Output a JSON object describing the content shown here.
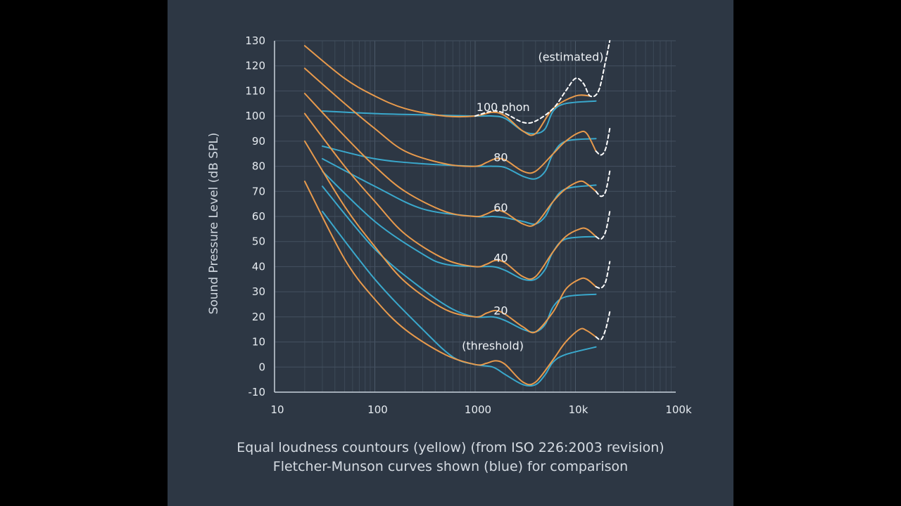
{
  "chart_data": {
    "type": "line",
    "x_scale": "log",
    "xlim": [
      10,
      100000
    ],
    "ylim": [
      -10,
      130
    ],
    "xticks": [
      10,
      100,
      1000,
      10000,
      100000
    ],
    "xtick_labels": [
      "10",
      "100",
      "1000",
      "10k",
      "100k"
    ],
    "yticks": [
      -10,
      0,
      10,
      20,
      30,
      40,
      50,
      60,
      70,
      80,
      90,
      100,
      110,
      120,
      130
    ],
    "ylabel": "Sound Pressure Level (dB SPL)",
    "xlabel": "",
    "grid": true,
    "annotations": [
      {
        "text": "100 phon",
        "x": 1900,
        "y": 102
      },
      {
        "text": "80",
        "x": 1800,
        "y": 82
      },
      {
        "text": "60",
        "x": 1800,
        "y": 62
      },
      {
        "text": "40",
        "x": 1800,
        "y": 42
      },
      {
        "text": "20",
        "x": 1800,
        "y": 21
      },
      {
        "text": "(threshold)",
        "x": 1500,
        "y": 7
      },
      {
        "text": "(estimated)",
        "x": 9000,
        "y": 122
      }
    ],
    "series": [
      {
        "group": "ISO 226:2003",
        "color": "#e89a4c",
        "level": 100,
        "points": [
          [
            20,
            128
          ],
          [
            50,
            115
          ],
          [
            100,
            108
          ],
          [
            200,
            103
          ],
          [
            500,
            100
          ],
          [
            1000,
            100
          ],
          [
            1500,
            101.5
          ],
          [
            2000,
            100
          ],
          [
            3000,
            94
          ],
          [
            4000,
            93
          ],
          [
            6000,
            103
          ],
          [
            10000,
            108
          ],
          [
            14000,
            108
          ]
        ]
      },
      {
        "group": "ISO 226:2003",
        "color": "#e89a4c",
        "level": 80,
        "points": [
          [
            20,
            119
          ],
          [
            50,
            105
          ],
          [
            100,
            95
          ],
          [
            200,
            86
          ],
          [
            500,
            81
          ],
          [
            1000,
            80
          ],
          [
            1300,
            81.5
          ],
          [
            1600,
            83
          ],
          [
            2000,
            82.5
          ],
          [
            3000,
            78
          ],
          [
            4000,
            78
          ],
          [
            6000,
            85
          ],
          [
            8000,
            90
          ],
          [
            11000,
            93.5
          ],
          [
            13000,
            93
          ],
          [
            16000,
            86
          ]
        ]
      },
      {
        "group": "ISO 226:2003",
        "color": "#e89a4c",
        "level": 60,
        "points": [
          [
            20,
            109
          ],
          [
            50,
            92
          ],
          [
            100,
            80
          ],
          [
            200,
            70
          ],
          [
            500,
            62
          ],
          [
            1000,
            60
          ],
          [
            1300,
            61
          ],
          [
            1600,
            62.5
          ],
          [
            2000,
            61.5
          ],
          [
            3000,
            57
          ],
          [
            4000,
            57
          ],
          [
            6000,
            66
          ],
          [
            8000,
            71
          ],
          [
            11000,
            74
          ],
          [
            13000,
            73
          ],
          [
            16000,
            70
          ]
        ]
      },
      {
        "group": "ISO 226:2003",
        "color": "#e89a4c",
        "level": 40,
        "points": [
          [
            20,
            101
          ],
          [
            50,
            80
          ],
          [
            100,
            66
          ],
          [
            200,
            53
          ],
          [
            500,
            43
          ],
          [
            1000,
            40
          ],
          [
            1300,
            41
          ],
          [
            1600,
            42.5
          ],
          [
            2000,
            41.5
          ],
          [
            3000,
            36
          ],
          [
            4000,
            36
          ],
          [
            6000,
            46
          ],
          [
            8000,
            52
          ],
          [
            11000,
            55
          ],
          [
            13000,
            55
          ],
          [
            16000,
            52
          ]
        ]
      },
      {
        "group": "ISO 226:2003",
        "color": "#e89a4c",
        "level": 20,
        "points": [
          [
            20,
            90
          ],
          [
            50,
            64
          ],
          [
            100,
            48
          ],
          [
            200,
            34
          ],
          [
            500,
            23
          ],
          [
            1000,
            20
          ],
          [
            1300,
            21.5
          ],
          [
            1600,
            22.5
          ],
          [
            2000,
            21
          ],
          [
            3000,
            16
          ],
          [
            4000,
            14
          ],
          [
            6000,
            22
          ],
          [
            8000,
            31
          ],
          [
            11000,
            35
          ],
          [
            13000,
            35
          ],
          [
            16000,
            32
          ]
        ]
      },
      {
        "group": "ISO 226:2003",
        "color": "#e89a4c",
        "level": 0,
        "points": [
          [
            20,
            74
          ],
          [
            50,
            43
          ],
          [
            100,
            27
          ],
          [
            200,
            15
          ],
          [
            500,
            5
          ],
          [
            1000,
            1
          ],
          [
            1300,
            1.5
          ],
          [
            1600,
            2.5
          ],
          [
            2000,
            1
          ],
          [
            3000,
            -6
          ],
          [
            4000,
            -6
          ],
          [
            6000,
            3
          ],
          [
            8000,
            10
          ],
          [
            11000,
            15
          ],
          [
            13000,
            14.5
          ],
          [
            16000,
            12
          ]
        ]
      },
      {
        "group": "Fletcher-Munson",
        "color": "#3aa8cc",
        "level": 100,
        "points": [
          [
            30,
            102
          ],
          [
            100,
            101
          ],
          [
            300,
            100.5
          ],
          [
            1000,
            100
          ],
          [
            1500,
            100
          ],
          [
            2000,
            99
          ],
          [
            3000,
            94
          ],
          [
            4000,
            93
          ],
          [
            5000,
            95
          ],
          [
            6000,
            102
          ],
          [
            8000,
            105
          ],
          [
            16000,
            106
          ]
        ]
      },
      {
        "group": "Fletcher-Munson",
        "color": "#3aa8cc",
        "level": 80,
        "points": [
          [
            30,
            88
          ],
          [
            100,
            83
          ],
          [
            300,
            81
          ],
          [
            1000,
            80
          ],
          [
            1500,
            80
          ],
          [
            2000,
            79.5
          ],
          [
            3000,
            76
          ],
          [
            4000,
            75
          ],
          [
            5000,
            78
          ],
          [
            6000,
            85
          ],
          [
            8000,
            90
          ],
          [
            16000,
            91
          ]
        ]
      },
      {
        "group": "Fletcher-Munson",
        "color": "#3aa8cc",
        "level": 60,
        "points": [
          [
            30,
            83
          ],
          [
            100,
            72
          ],
          [
            300,
            63
          ],
          [
            1000,
            60
          ],
          [
            1500,
            60
          ],
          [
            2000,
            59.5
          ],
          [
            3000,
            58
          ],
          [
            4000,
            57
          ],
          [
            5000,
            60
          ],
          [
            6000,
            66
          ],
          [
            8000,
            71
          ],
          [
            16000,
            72.5
          ]
        ]
      },
      {
        "group": "Fletcher-Munson",
        "color": "#3aa8cc",
        "level": 40,
        "points": [
          [
            30,
            78
          ],
          [
            100,
            58
          ],
          [
            300,
            45
          ],
          [
            500,
            41
          ],
          [
            1000,
            40
          ],
          [
            1500,
            40
          ],
          [
            2000,
            38.5
          ],
          [
            3000,
            35
          ],
          [
            4000,
            35
          ],
          [
            5000,
            39
          ],
          [
            6000,
            46
          ],
          [
            8000,
            51
          ],
          [
            16000,
            52
          ]
        ]
      },
      {
        "group": "Fletcher-Munson",
        "color": "#3aa8cc",
        "level": 20,
        "points": [
          [
            30,
            72
          ],
          [
            100,
            47
          ],
          [
            300,
            31
          ],
          [
            600,
            23
          ],
          [
            1000,
            20
          ],
          [
            1500,
            20
          ],
          [
            2000,
            18.5
          ],
          [
            3000,
            15
          ],
          [
            4000,
            14
          ],
          [
            5000,
            17
          ],
          [
            6000,
            24
          ],
          [
            8000,
            28
          ],
          [
            16000,
            29
          ]
        ]
      },
      {
        "group": "Fletcher-Munson",
        "color": "#3aa8cc",
        "level": 0,
        "points": [
          [
            30,
            62
          ],
          [
            100,
            35
          ],
          [
            300,
            15
          ],
          [
            600,
            4
          ],
          [
            1000,
            1
          ],
          [
            1500,
            0
          ],
          [
            2000,
            -3
          ],
          [
            3000,
            -7
          ],
          [
            4000,
            -7
          ],
          [
            5000,
            -3
          ],
          [
            6000,
            2
          ],
          [
            8000,
            5
          ],
          [
            16000,
            8
          ]
        ]
      },
      {
        "group": "estimated",
        "color": "#ffffff",
        "dashed": true,
        "points": [
          [
            1000,
            100
          ],
          [
            1500,
            102
          ],
          [
            2000,
            101
          ],
          [
            3000,
            97.5
          ],
          [
            4000,
            98
          ],
          [
            6000,
            103
          ],
          [
            8000,
            110
          ],
          [
            10000,
            115
          ],
          [
            12000,
            113
          ],
          [
            14000,
            108
          ],
          [
            17000,
            110
          ],
          [
            20000,
            122
          ],
          [
            22000,
            130
          ]
        ]
      },
      {
        "group": "estimated",
        "color": "#ffffff",
        "dashed": true,
        "points": [
          [
            16000,
            86
          ],
          [
            18000,
            84.5
          ],
          [
            20000,
            87
          ],
          [
            22000,
            95
          ]
        ]
      },
      {
        "group": "estimated",
        "color": "#ffffff",
        "dashed": true,
        "points": [
          [
            16000,
            70
          ],
          [
            18000,
            68
          ],
          [
            20000,
            70
          ],
          [
            22000,
            78
          ]
        ]
      },
      {
        "group": "estimated",
        "color": "#ffffff",
        "dashed": true,
        "points": [
          [
            16000,
            52
          ],
          [
            18000,
            51
          ],
          [
            20000,
            54
          ],
          [
            22000,
            62
          ]
        ]
      },
      {
        "group": "estimated",
        "color": "#ffffff",
        "dashed": true,
        "points": [
          [
            16000,
            32
          ],
          [
            18000,
            31.5
          ],
          [
            20000,
            34
          ],
          [
            22000,
            42
          ]
        ]
      },
      {
        "group": "estimated",
        "color": "#ffffff",
        "dashed": true,
        "points": [
          [
            16000,
            12
          ],
          [
            18000,
            11
          ],
          [
            20000,
            15
          ],
          [
            22000,
            22
          ]
        ]
      }
    ]
  },
  "caption": {
    "line1": "Equal loudness countours (yellow) (from ISO 226:2003 revision)",
    "line2": "Fletcher-Munson curves shown (blue) for comparison"
  }
}
